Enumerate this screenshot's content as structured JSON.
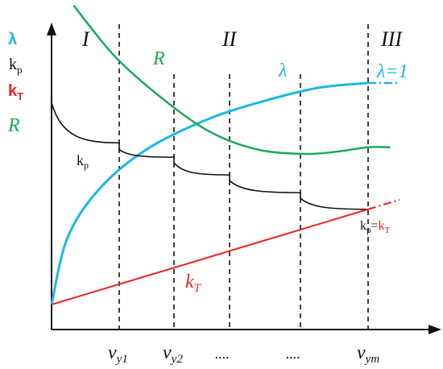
{
  "chart_data": {
    "type": "line",
    "title": "",
    "colors": {
      "lambda": "#1ab8e6",
      "kp": "#111111",
      "kT": "#ee2222",
      "R": "#1aaa5a",
      "axis": "#111111"
    },
    "legend": {
      "lambda": "λ",
      "kp": "k",
      "kp_sub": "p",
      "kT": "k",
      "kT_sub": "T",
      "R": "R"
    },
    "regions": [
      "I",
      "II",
      "III"
    ],
    "x_ticks": [
      {
        "main": "v",
        "sub": "y1"
      },
      {
        "main": "v",
        "sub": "y2"
      },
      {
        "main": "....",
        "sub": ""
      },
      {
        "main": "....",
        "sub": ""
      },
      {
        "main": "v",
        "sub": "ym"
      }
    ],
    "annotations": {
      "lambda_label": "λ",
      "lambda_eq1": "λ=1",
      "R_label": "R",
      "kp_label": "k",
      "kp_label_sub": "p",
      "kT_label": "k",
      "kT_label_sub": "T",
      "kp_eq": "k",
      "kp_eq_sub": "p",
      "kp_eq_mid": "=",
      "kT_eq": "k",
      "kT_eq_sub": "T"
    },
    "series": [
      {
        "name": "λ",
        "points": [
          [
            0.0,
            0.0
          ],
          [
            0.05,
            0.3
          ],
          [
            0.15,
            0.52
          ],
          [
            0.3,
            0.7
          ],
          [
            0.5,
            0.84
          ],
          [
            0.7,
            0.93
          ],
          [
            0.85,
            0.98
          ],
          [
            1.0,
            1.0
          ]
        ],
        "dashed_tail_to": 1.1
      },
      {
        "name": "R",
        "points": [
          [
            0.07,
            1.35
          ],
          [
            0.2,
            1.12
          ],
          [
            0.35,
            0.93
          ],
          [
            0.5,
            0.78
          ],
          [
            0.65,
            0.7
          ],
          [
            0.8,
            0.68
          ],
          [
            0.9,
            0.69
          ],
          [
            1.0,
            0.71
          ],
          [
            1.07,
            0.71
          ]
        ]
      },
      {
        "name": "kp",
        "shape": "scalloped decreasing, step at each v",
        "points": [
          [
            0.0,
            0.91
          ],
          [
            0.22,
            0.72
          ],
          [
            0.3,
            0.69
          ],
          [
            0.5,
            0.63
          ],
          [
            0.71,
            0.53
          ],
          [
            0.84,
            0.48
          ],
          [
            1.0,
            0.43
          ]
        ]
      },
      {
        "name": "kT",
        "points": [
          [
            0.0,
            0.0
          ],
          [
            1.0,
            0.43
          ]
        ],
        "dashed_tail_to": 1.1
      }
    ],
    "xlabel": "",
    "ylabel": "",
    "grid": false,
    "legend_placement": "left"
  }
}
